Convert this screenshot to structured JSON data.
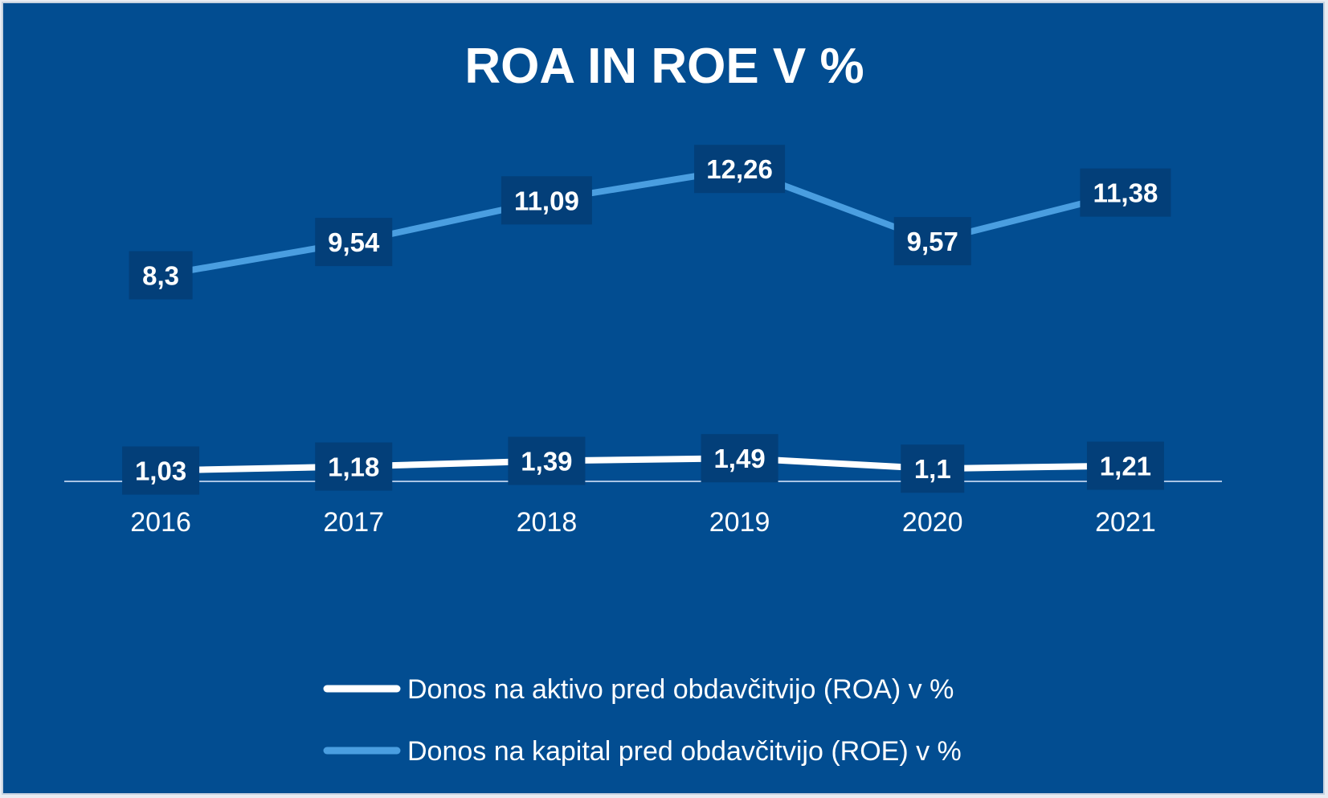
{
  "chart_data": {
    "type": "line",
    "title": "ROA IN ROE V %",
    "xlabel": "",
    "ylabel": "",
    "categories": [
      "2016",
      "2017",
      "2018",
      "2019",
      "2020",
      "2021"
    ],
    "series": [
      {
        "name": "Donos na aktivo pred obdavčitvijo (ROA) v %",
        "values": [
          1.03,
          1.18,
          1.39,
          1.49,
          1.1,
          1.21
        ],
        "labels": [
          "1,03",
          "1,18",
          "1,39",
          "1,49",
          "1,1",
          "1,21"
        ],
        "color": "#ffffff"
      },
      {
        "name": "Donos na kapital pred obdavčitvijo (ROE) v %",
        "values": [
          8.3,
          9.54,
          11.09,
          12.26,
          9.57,
          11.38
        ],
        "labels": [
          "8,3",
          "9,54",
          "11,09",
          "12,26",
          "9,57",
          "11,38"
        ],
        "color": "#4a9ee0"
      }
    ],
    "ylim": [
      -0.3,
      14.6
    ],
    "grid": false,
    "legend_position": "bottom",
    "colors": {
      "background": "#024d91",
      "label_box": "#033f79",
      "axis": "#a9c4e4",
      "text": "#ffffff"
    }
  }
}
